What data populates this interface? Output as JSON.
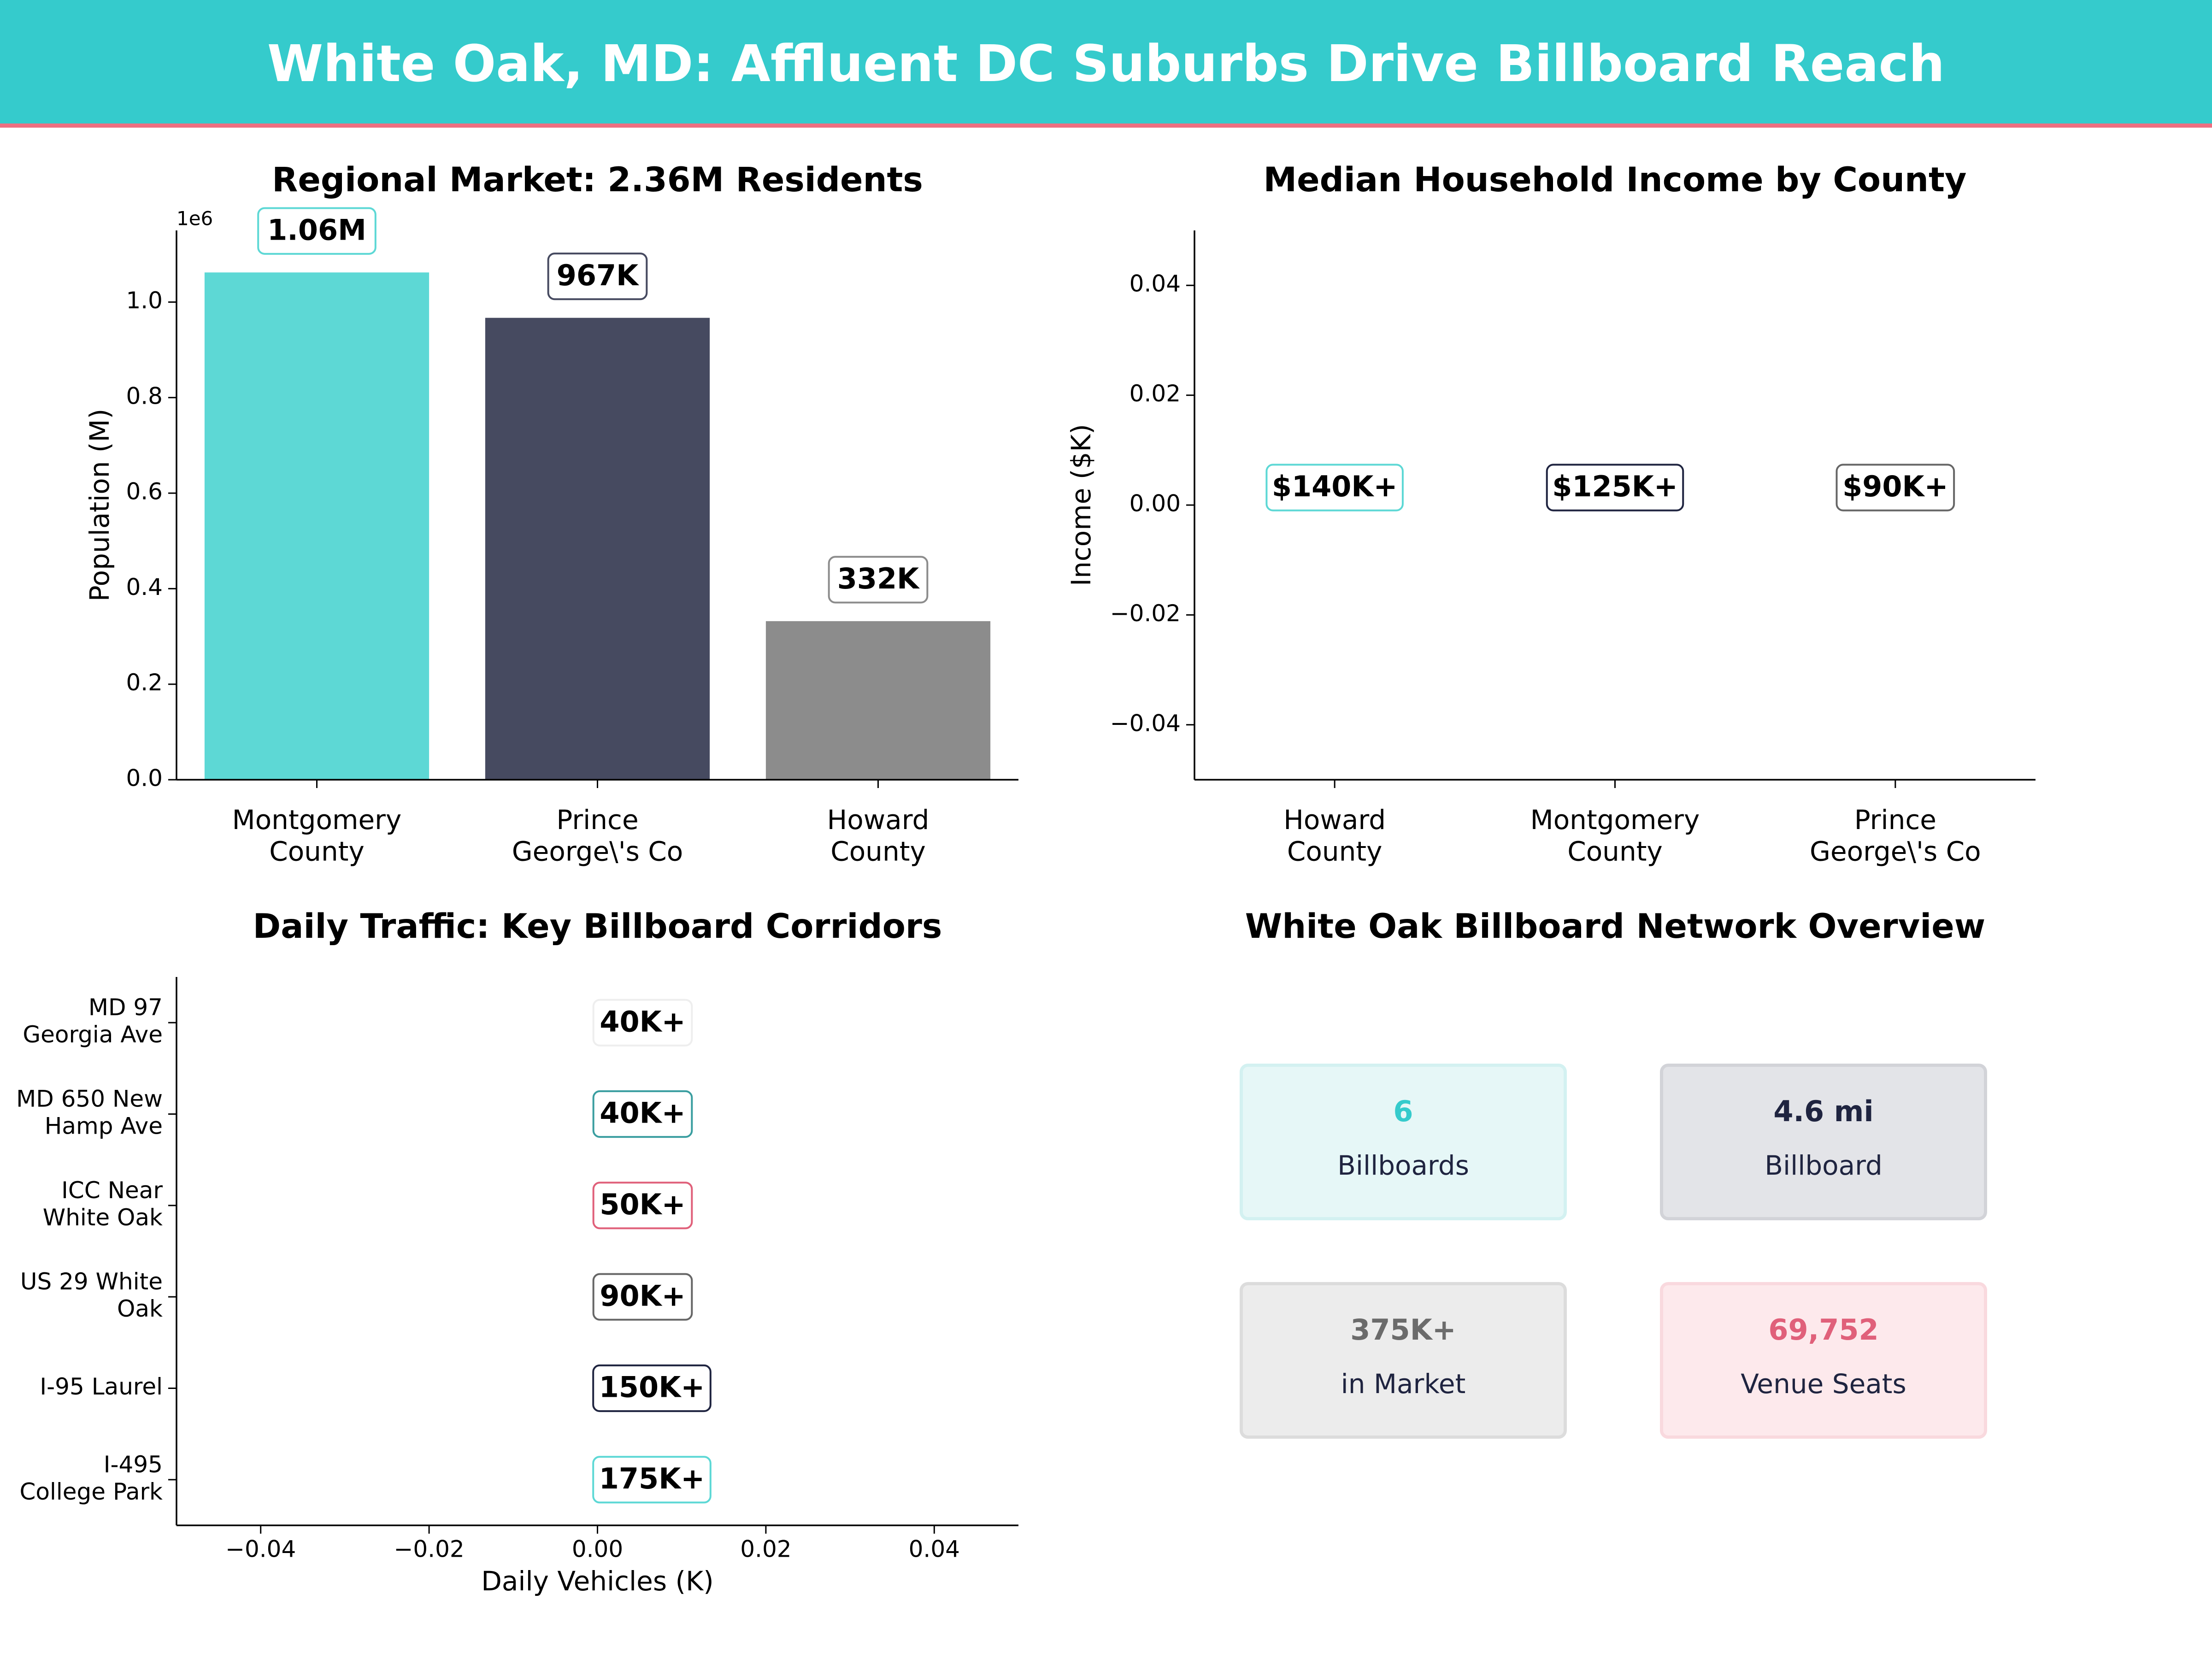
{
  "header": {
    "title": "White Oak, MD: Affluent DC Suburbs Drive Billboard Reach"
  },
  "colors": {
    "header_bg": "#35cbcc",
    "header_rule": "#ee6f81",
    "teal": "#5dd8d5",
    "navy": "#464a60",
    "gray": "#8c8c8c",
    "pink": "#e0607a",
    "teal_dark": "#3a9ea0"
  },
  "chart_data": [
    {
      "type": "bar",
      "title": "Regional Market: 2.36M Residents",
      "ylabel": "Population (M)",
      "xlabel": "",
      "offset_text": "1e6",
      "categories": [
        "Montgomery\nCounty",
        "Prince\nGeorge\\'s Co",
        "Howard\nCounty"
      ],
      "values": [
        1062000,
        967000,
        332000
      ],
      "data_labels": [
        "1.06M",
        "967K",
        "332K"
      ],
      "ylim": [
        0,
        1150000
      ],
      "yticks": [
        0,
        200000,
        400000,
        600000,
        800000,
        1000000
      ],
      "ytick_labels": [
        "0.0",
        "0.2",
        "0.4",
        "0.6",
        "0.8",
        "1.0"
      ],
      "bar_colors": [
        "#5dd8d5",
        "#464a60",
        "#8c8c8c"
      ],
      "label_border_colors": [
        "#5dd8d5",
        "#464a60",
        "#8c8c8c"
      ],
      "grid": false
    },
    {
      "type": "bar",
      "title": "Median Household Income by County",
      "ylabel": "Income ($K)",
      "xlabel": "",
      "categories": [
        "Howard\nCounty",
        "Montgomery\nCounty",
        "Prince\nGeorge\\'s Co"
      ],
      "values": [
        0,
        0,
        0
      ],
      "data_labels": [
        "$140K+",
        "$125K+",
        "$90K+"
      ],
      "ylim": [
        -0.05,
        0.05
      ],
      "yticks": [
        -0.04,
        -0.02,
        0,
        0.02,
        0.04
      ],
      "ytick_labels": [
        "−0.04",
        "−0.02",
        "0.00",
        "0.02",
        "0.04"
      ],
      "label_border_colors": [
        "#5dd8d5",
        "#1f2440",
        "#666666"
      ],
      "grid": false
    },
    {
      "type": "bar",
      "orientation": "horizontal",
      "title": "Daily Traffic: Key Billboard Corridors",
      "xlabel": "Daily Vehicles (K)",
      "ylabel": "",
      "categories": [
        "MD 97\nGeorgia Ave",
        "MD 650 New\nHamp Ave",
        "ICC Near\nWhite Oak",
        "US 29 White\nOak",
        "I-95 Laurel",
        "I-495\nCollege Park"
      ],
      "values": [
        0,
        0,
        0,
        0,
        0,
        0
      ],
      "data_labels": [
        "40K+",
        "40K+",
        "50K+",
        "90K+",
        "150K+",
        "175K+"
      ],
      "xlim": [
        -0.05,
        0.05
      ],
      "xticks": [
        -0.04,
        -0.02,
        0,
        0.02,
        0.04
      ],
      "xtick_labels": [
        "−0.04",
        "−0.02",
        "0.00",
        "0.02",
        "0.04"
      ],
      "label_border_colors": [
        "#eeeeee",
        "#3a9ea0",
        "#e0607a",
        "#666666",
        "#1f2440",
        "#5dd8d5"
      ],
      "grid": false
    },
    {
      "type": "table",
      "title": "White Oak Billboard Network Overview",
      "cards": [
        {
          "value": "6",
          "label": "Billboards",
          "value_color": "#35cbcc",
          "bg": "#e6f7f7",
          "border": "#d3f1f1"
        },
        {
          "value": "4.6 mi",
          "label": "Billboard",
          "value_color": "#1f2440",
          "bg": "#e3e4e8",
          "border": "#d2d3d8"
        },
        {
          "value": "375K+",
          "label": "in Market",
          "value_color": "#6b6b6b",
          "bg": "#ececec",
          "border": "#dcdcdc"
        },
        {
          "value": "69,752",
          "label": "Venue Seats",
          "value_color": "#e0607a",
          "bg": "#fde9ec",
          "border": "#f9d9de"
        }
      ]
    }
  ]
}
